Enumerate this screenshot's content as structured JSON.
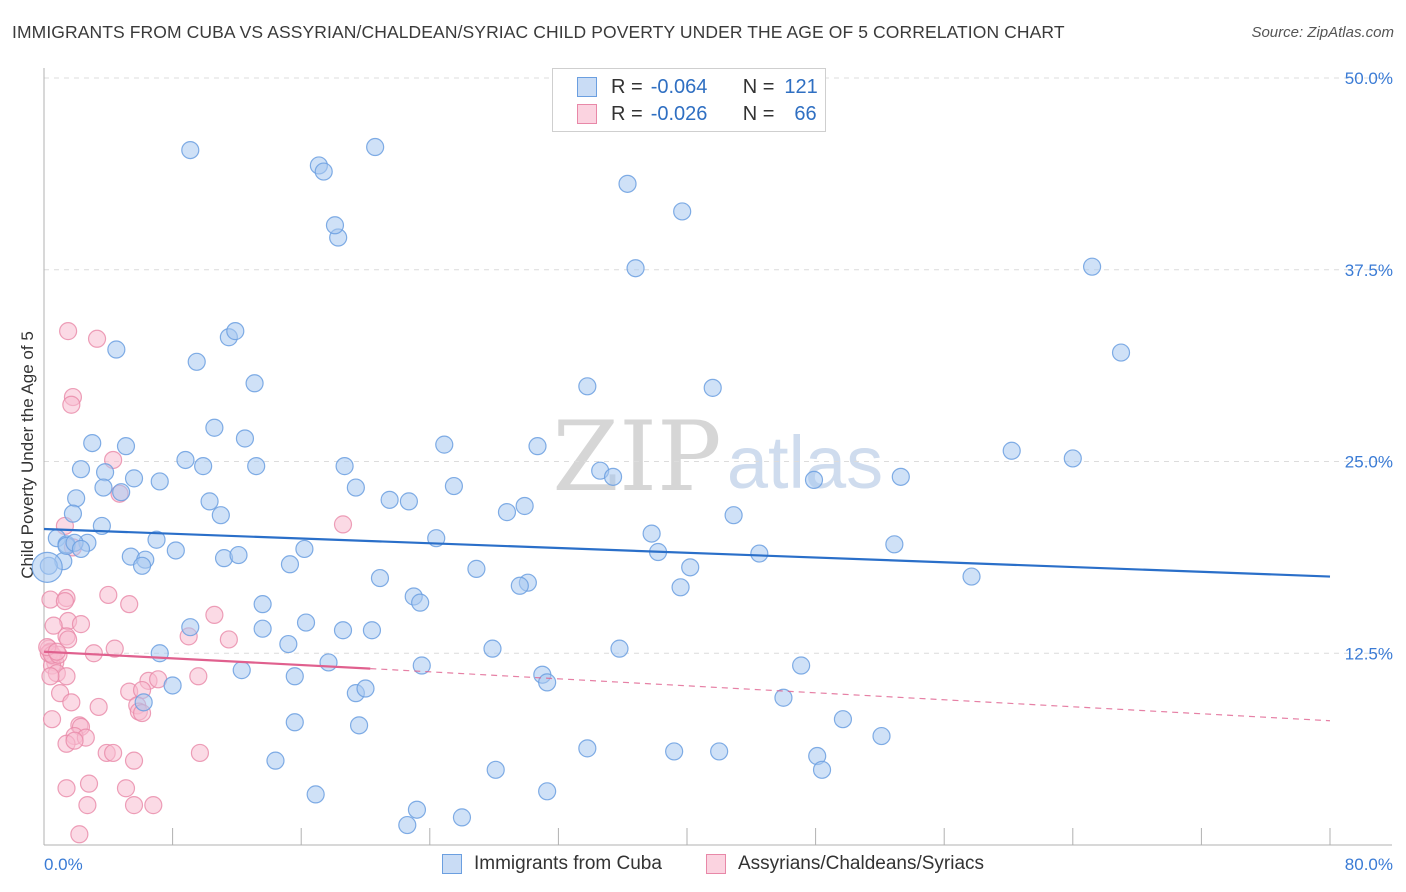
{
  "title": "IMMIGRANTS FROM CUBA VS ASSYRIAN/CHALDEAN/SYRIAC CHILD POVERTY UNDER THE AGE OF 5 CORRELATION CHART",
  "source": "Source: ZipAtlas.com",
  "watermark": {
    "zip": "ZIP",
    "atlas": "atlas"
  },
  "legend": {
    "rows": [
      {
        "r_label": "R =",
        "r_value": "-0.064",
        "n_label": "N =",
        "n_value": "121",
        "color": "#a8c8f0",
        "border": "#6b9fe0"
      },
      {
        "r_label": "R =",
        "r_value": "-0.026",
        "n_label": "N =",
        "n_value": "66",
        "color": "#f7bcd0",
        "border": "#e888a8"
      }
    ]
  },
  "bottom_legend": [
    "Immigrants from Cuba",
    "Assyrians/Chaldeans/Syriacs"
  ],
  "chart_data": {
    "type": "scatter",
    "title": "IMMIGRANTS FROM CUBA VS ASSYRIAN/CHALDEAN/SYRIAC CHILD POVERTY UNDER THE AGE OF 5 CORRELATION CHART",
    "xlabel": "",
    "ylabel": "Child Poverty Under the Age of 5",
    "xlim": [
      0,
      80
    ],
    "ylim": [
      0,
      50
    ],
    "x_tick_labels": [
      "0.0%",
      "80.0%"
    ],
    "y_tick_labels": [
      "12.5%",
      "25.0%",
      "37.5%",
      "50.0%"
    ],
    "y_ticks": [
      12.5,
      25,
      37.5,
      50
    ],
    "grid": true,
    "colors": {
      "blue": "#6b9fe0",
      "blue_fill": "#a8c8f0",
      "pink": "#e888a8",
      "pink_fill": "#f7bcd0",
      "blue_line": "#2a6fc9",
      "pink_line": "#e0608e",
      "tick": "#3a7bd5"
    },
    "series": [
      {
        "name": "Immigrants from Cuba",
        "trend": {
          "x": [
            0,
            80
          ],
          "y": [
            20.6,
            17.5
          ]
        },
        "points": [
          [
            9.1,
            45.3
          ],
          [
            17.1,
            44.3
          ],
          [
            17.4,
            43.9
          ],
          [
            20.6,
            45.5
          ],
          [
            36.3,
            43.1
          ],
          [
            39.7,
            41.3
          ],
          [
            18.3,
            39.6
          ],
          [
            18.1,
            40.4
          ],
          [
            36.8,
            37.6
          ],
          [
            65.2,
            37.7
          ],
          [
            67.0,
            32.1
          ],
          [
            4.5,
            32.3
          ],
          [
            11.5,
            33.1
          ],
          [
            11.9,
            33.5
          ],
          [
            9.5,
            31.5
          ],
          [
            13.1,
            30.1
          ],
          [
            33.8,
            29.9
          ],
          [
            41.6,
            29.8
          ],
          [
            3.0,
            26.2
          ],
          [
            5.1,
            26.0
          ],
          [
            10.6,
            27.2
          ],
          [
            12.5,
            26.5
          ],
          [
            24.9,
            26.1
          ],
          [
            30.7,
            26.0
          ],
          [
            60.2,
            25.7
          ],
          [
            64.0,
            25.2
          ],
          [
            3.8,
            24.3
          ],
          [
            2.3,
            24.5
          ],
          [
            8.8,
            25.1
          ],
          [
            9.9,
            24.7
          ],
          [
            13.2,
            24.7
          ],
          [
            18.7,
            24.7
          ],
          [
            34.6,
            24.4
          ],
          [
            35.4,
            24.0
          ],
          [
            47.9,
            23.8
          ],
          [
            53.3,
            24.0
          ],
          [
            5.6,
            23.9
          ],
          [
            7.2,
            23.7
          ],
          [
            19.4,
            23.3
          ],
          [
            25.5,
            23.4
          ],
          [
            3.7,
            23.3
          ],
          [
            4.8,
            23.0
          ],
          [
            2.0,
            22.6
          ],
          [
            10.3,
            22.4
          ],
          [
            21.5,
            22.5
          ],
          [
            22.7,
            22.4
          ],
          [
            28.8,
            21.7
          ],
          [
            42.9,
            21.5
          ],
          [
            1.8,
            21.6
          ],
          [
            11.0,
            21.5
          ],
          [
            29.9,
            22.1
          ],
          [
            3.6,
            20.8
          ],
          [
            0.8,
            20.0
          ],
          [
            1.4,
            19.6
          ],
          [
            2.7,
            19.7
          ],
          [
            7.0,
            19.9
          ],
          [
            24.4,
            20.0
          ],
          [
            37.8,
            20.3
          ],
          [
            52.9,
            19.6
          ],
          [
            16.2,
            19.3
          ],
          [
            8.2,
            19.2
          ],
          [
            38.2,
            19.1
          ],
          [
            44.5,
            19.0
          ],
          [
            11.2,
            18.7
          ],
          [
            12.1,
            18.9
          ],
          [
            26.9,
            18.0
          ],
          [
            40.2,
            18.1
          ],
          [
            1.2,
            18.5
          ],
          [
            5.4,
            18.8
          ],
          [
            6.3,
            18.6
          ],
          [
            6.1,
            18.2
          ],
          [
            15.3,
            18.3
          ],
          [
            57.7,
            17.5
          ],
          [
            20.9,
            17.4
          ],
          [
            30.1,
            17.1
          ],
          [
            39.6,
            16.8
          ],
          [
            29.6,
            16.9
          ],
          [
            23.0,
            16.2
          ],
          [
            23.4,
            15.8
          ],
          [
            13.6,
            15.7
          ],
          [
            9.1,
            14.2
          ],
          [
            13.6,
            14.1
          ],
          [
            16.3,
            14.5
          ],
          [
            18.6,
            14.0
          ],
          [
            20.4,
            14.0
          ],
          [
            15.2,
            13.1
          ],
          [
            27.9,
            12.8
          ],
          [
            35.8,
            12.8
          ],
          [
            7.2,
            12.5
          ],
          [
            17.7,
            11.9
          ],
          [
            23.5,
            11.7
          ],
          [
            47.1,
            11.7
          ],
          [
            12.3,
            11.4
          ],
          [
            31.0,
            11.1
          ],
          [
            15.6,
            11.0
          ],
          [
            8.0,
            10.4
          ],
          [
            31.3,
            10.6
          ],
          [
            19.4,
            9.9
          ],
          [
            20.0,
            10.2
          ],
          [
            6.2,
            9.3
          ],
          [
            46.0,
            9.6
          ],
          [
            15.6,
            8.0
          ],
          [
            19.6,
            7.8
          ],
          [
            49.7,
            8.2
          ],
          [
            52.1,
            7.1
          ],
          [
            33.8,
            6.3
          ],
          [
            39.2,
            6.1
          ],
          [
            42.0,
            6.1
          ],
          [
            48.1,
            5.8
          ],
          [
            14.4,
            5.5
          ],
          [
            28.1,
            4.9
          ],
          [
            48.4,
            4.9
          ],
          [
            16.9,
            3.3
          ],
          [
            31.3,
            3.5
          ],
          [
            23.2,
            2.3
          ],
          [
            26.0,
            1.8
          ],
          [
            22.6,
            1.3
          ],
          [
            1.4,
            19.5
          ],
          [
            1.9,
            19.7
          ],
          [
            2.3,
            19.3
          ],
          [
            0.3,
            18.2
          ]
        ]
      },
      {
        "name": "Assyrians/Chaldeans/Syriacs",
        "trend": {
          "x": [
            0,
            20.3,
            80
          ],
          "y": [
            12.6,
            11.5,
            8.1
          ]
        },
        "points": [
          [
            1.5,
            33.5
          ],
          [
            3.3,
            33.0
          ],
          [
            1.8,
            29.2
          ],
          [
            1.7,
            28.7
          ],
          [
            4.3,
            25.1
          ],
          [
            4.7,
            22.9
          ],
          [
            1.3,
            20.8
          ],
          [
            18.6,
            20.9
          ],
          [
            1.8,
            19.4
          ],
          [
            0.4,
            16.0
          ],
          [
            1.4,
            16.1
          ],
          [
            1.3,
            15.9
          ],
          [
            4.0,
            16.3
          ],
          [
            5.3,
            15.7
          ],
          [
            10.6,
            15.0
          ],
          [
            1.5,
            14.6
          ],
          [
            0.6,
            14.3
          ],
          [
            2.3,
            14.4
          ],
          [
            9.0,
            13.6
          ],
          [
            11.5,
            13.4
          ],
          [
            1.4,
            13.6
          ],
          [
            1.5,
            13.4
          ],
          [
            0.3,
            12.8
          ],
          [
            3.1,
            12.5
          ],
          [
            4.4,
            12.8
          ],
          [
            0.4,
            12.6
          ],
          [
            0.6,
            12.3
          ],
          [
            0.7,
            11.9
          ],
          [
            0.5,
            11.7
          ],
          [
            0.8,
            11.2
          ],
          [
            1.4,
            11.0
          ],
          [
            0.4,
            11.0
          ],
          [
            9.6,
            11.0
          ],
          [
            6.5,
            10.7
          ],
          [
            7.1,
            10.8
          ],
          [
            5.3,
            10.0
          ],
          [
            6.1,
            10.1
          ],
          [
            1.0,
            9.9
          ],
          [
            1.7,
            9.3
          ],
          [
            5.8,
            9.1
          ],
          [
            3.4,
            9.0
          ],
          [
            5.9,
            8.7
          ],
          [
            6.1,
            8.6
          ],
          [
            0.5,
            8.2
          ],
          [
            2.2,
            7.8
          ],
          [
            2.3,
            7.7
          ],
          [
            1.9,
            7.1
          ],
          [
            1.4,
            6.6
          ],
          [
            2.6,
            7.0
          ],
          [
            1.9,
            6.8
          ],
          [
            3.9,
            6.0
          ],
          [
            4.3,
            6.0
          ],
          [
            9.7,
            6.0
          ],
          [
            5.6,
            5.5
          ],
          [
            1.4,
            3.7
          ],
          [
            2.8,
            4.0
          ],
          [
            5.1,
            3.7
          ],
          [
            2.7,
            2.6
          ],
          [
            5.6,
            2.6
          ],
          [
            6.8,
            2.6
          ],
          [
            2.2,
            0.7
          ],
          [
            0.3,
            12.5
          ],
          [
            0.5,
            12.4
          ],
          [
            0.9,
            12.4
          ],
          [
            0.2,
            12.9
          ],
          [
            0.8,
            12.6
          ]
        ]
      }
    ]
  }
}
